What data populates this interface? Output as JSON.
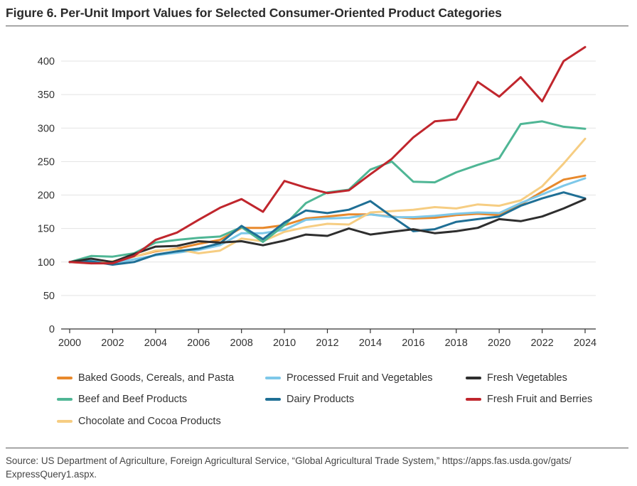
{
  "figure": {
    "title": "Figure 6. Per-Unit Import Values for Selected Consumer-Oriented Product Categories",
    "source_line1": "Source: US Department of Agriculture, Foreign Agricultural Service, “Global Agricultural Trade System,” https://apps.fas.usda.gov/gats/",
    "source_line2": "ExpressQuery1.aspx."
  },
  "chart_data": {
    "type": "line",
    "title": "Per-Unit Import Values for Selected Consumer-Oriented Product Categories",
    "xlabel": "",
    "ylabel": "",
    "xlim": [
      2000,
      2024
    ],
    "ylim": [
      0,
      420
    ],
    "x": [
      2000,
      2001,
      2002,
      2003,
      2004,
      2005,
      2006,
      2007,
      2008,
      2009,
      2010,
      2011,
      2012,
      2013,
      2014,
      2015,
      2016,
      2017,
      2018,
      2019,
      2020,
      2021,
      2022,
      2023,
      2024
    ],
    "x_ticks": [
      2000,
      2002,
      2004,
      2006,
      2008,
      2010,
      2012,
      2014,
      2016,
      2018,
      2020,
      2022,
      2024
    ],
    "y_ticks": [
      0,
      50,
      100,
      150,
      200,
      250,
      300,
      350,
      400
    ],
    "grid": "horizontal",
    "legend_position": "bottom",
    "series": [
      {
        "name": "Baked Goods, Cereals, and Pasta",
        "color": "#e8892c",
        "values": [
          100,
          104,
          100,
          108,
          116,
          120,
          127,
          133,
          151,
          151,
          155,
          165,
          168,
          171,
          171,
          168,
          165,
          166,
          170,
          172,
          170,
          186,
          205,
          223,
          229
        ]
      },
      {
        "name": "Processed Fruit and Vegetables",
        "color": "#7ec8e9",
        "values": [
          100,
          102,
          98,
          104,
          110,
          114,
          118,
          125,
          143,
          143,
          148,
          163,
          165,
          166,
          171,
          167,
          167,
          169,
          172,
          174,
          173,
          188,
          201,
          214,
          225
        ]
      },
      {
        "name": "Fresh Vegetables",
        "color": "#2e2e2e",
        "values": [
          100,
          105,
          100,
          112,
          123,
          124,
          131,
          129,
          131,
          125,
          132,
          141,
          139,
          150,
          141,
          145,
          149,
          143,
          146,
          151,
          164,
          161,
          168,
          180,
          194
        ]
      },
      {
        "name": "Beef and Beef Products",
        "color": "#4fb695",
        "values": [
          100,
          109,
          108,
          113,
          129,
          133,
          136,
          138,
          152,
          130,
          155,
          188,
          204,
          208,
          238,
          250,
          220,
          219,
          234,
          245,
          255,
          306,
          310,
          302,
          299
        ]
      },
      {
        "name": "Dairy Products",
        "color": "#1f6f95",
        "values": [
          100,
          101,
          96,
          100,
          111,
          116,
          120,
          128,
          154,
          134,
          159,
          177,
          173,
          178,
          191,
          168,
          146,
          149,
          160,
          164,
          168,
          184,
          195,
          204,
          195
        ]
      },
      {
        "name": "Fresh Fruit and Berries",
        "color": "#c0262d",
        "values": [
          100,
          98,
          98,
          109,
          133,
          144,
          163,
          181,
          194,
          175,
          221,
          211,
          203,
          207,
          231,
          254,
          286,
          310,
          313,
          369,
          347,
          376,
          340,
          400,
          421
        ]
      },
      {
        "name": "Chocolate and Cocoa Products",
        "color": "#f6cd82",
        "values": [
          100,
          98,
          101,
          108,
          117,
          119,
          113,
          117,
          135,
          131,
          145,
          152,
          157,
          156,
          174,
          176,
          178,
          182,
          180,
          186,
          184,
          192,
          213,
          247,
          284
        ]
      }
    ]
  }
}
